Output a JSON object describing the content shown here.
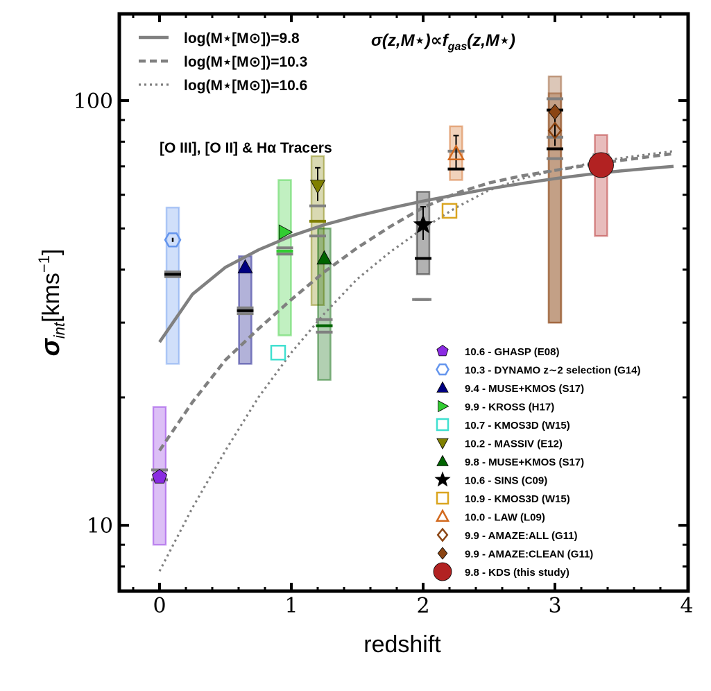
{
  "chart_data": {
    "type": "scatter",
    "title": "σ(z,M⋆)∝f",
    "title_sub": "gas",
    "title_tail": "(z,M⋆)",
    "xlabel": "redshift",
    "ylabel_main": "σ",
    "ylabel_sub": "int",
    "ylabel_units": "[kms",
    "ylabel_exp": "−1",
    "ylabel_close": "]",
    "xlim": [
      -0.3,
      4.0
    ],
    "ylim": [
      7.0,
      160.0
    ],
    "yscale": "log",
    "x_ticks": [
      0,
      1,
      2,
      3,
      4
    ],
    "x_tick_labels": [
      "0",
      "1",
      "2",
      "3",
      "4"
    ],
    "y_ticks": [
      10,
      100
    ],
    "y_tick_labels": [
      "10",
      "100"
    ],
    "tracer_note": "[O III], [O II] & Hα Tracers",
    "model_curves": [
      {
        "name": "log(M⋆[M⊙])=9.8",
        "style": "solid",
        "color": "#808080",
        "x": [
          0.0,
          0.25,
          0.5,
          0.75,
          1.0,
          1.25,
          1.5,
          1.75,
          2.0,
          2.25,
          2.5,
          2.75,
          3.0,
          3.25,
          3.5,
          3.75,
          3.9
        ],
        "y": [
          27.0,
          35.0,
          40.5,
          44.5,
          48.0,
          51.0,
          53.5,
          55.8,
          58.0,
          60.0,
          62.0,
          63.8,
          65.5,
          67.0,
          68.3,
          69.4,
          70.0
        ]
      },
      {
        "name": "log(M⋆[M⊙])=10.3",
        "style": "dashed",
        "color": "#808080",
        "x": [
          0.0,
          0.25,
          0.5,
          0.75,
          1.0,
          1.25,
          1.5,
          1.75,
          2.0,
          2.25,
          2.5,
          2.75,
          3.0,
          3.25,
          3.5,
          3.75,
          3.9
        ],
        "y": [
          15.0,
          19.5,
          24.5,
          29.0,
          34.0,
          39.5,
          45.0,
          50.5,
          56.0,
          60.5,
          64.0,
          66.5,
          68.5,
          70.5,
          72.3,
          74.0,
          75.0
        ]
      },
      {
        "name": "log(M⋆[M⊙])=10.6",
        "style": "dotted",
        "color": "#808080",
        "x": [
          0.0,
          0.25,
          0.5,
          0.75,
          1.0,
          1.25,
          1.5,
          1.75,
          2.0,
          2.25,
          2.5,
          2.75,
          3.0,
          3.25,
          3.5,
          3.75,
          3.9
        ],
        "y": [
          7.8,
          11.0,
          15.0,
          20.0,
          25.5,
          31.5,
          38.0,
          44.0,
          50.0,
          56.0,
          61.5,
          65.5,
          68.5,
          71.0,
          73.2,
          75.0,
          76.0
        ]
      }
    ],
    "series": [
      {
        "name": "10.6 - GHASP (E08)",
        "marker": "pentagon",
        "color": "#8a2be2",
        "filled": true,
        "x": 0.0,
        "y": 13.0,
        "box": [
          9.0,
          19.0
        ],
        "box_x": 0.0,
        "medians": [
          13.5,
          12.8
        ],
        "median_color": "#808080"
      },
      {
        "name": "10.3 - DYNAMO z∼2 selection (G14)",
        "marker": "hexagon",
        "color": "#6495ed",
        "filled": false,
        "x": 0.1,
        "y": 47.0,
        "box": [
          24.0,
          56.0
        ],
        "box_x": 0.1,
        "medians": [
          39.5,
          38.5
        ],
        "median_color": "#808080",
        "black_median": 39.0
      },
      {
        "name": "9.4 - MUSE+KMOS (S17)",
        "marker": "triangle-up",
        "color": "#000080",
        "filled": true,
        "x": 0.65,
        "y": 40.5,
        "box": [
          24.0,
          43.0
        ],
        "box_x": 0.65,
        "medians": [
          32.5,
          31.5
        ],
        "median_color": "#808080",
        "black_median": 32.0
      },
      {
        "name": "9.9 - KROSS (H17)",
        "marker": "triangle-right",
        "color": "#32cd32",
        "filled": true,
        "x": 0.95,
        "y": 49.0,
        "box": [
          28.0,
          65.0
        ],
        "box_x": 0.95,
        "medians": [
          45.0,
          43.5
        ],
        "median_color": "#808080",
        "green_median": 44.2
      },
      {
        "name": "10.7 - KMOS3D (W15)",
        "marker": "square",
        "color": "#40e0d0",
        "filled": false,
        "x": 0.9,
        "y": 25.5,
        "box": null
      },
      {
        "name": "10.2 - MASSIV (E12)",
        "marker": "triangle-down",
        "color": "#808000",
        "filled": true,
        "x": 1.2,
        "y": 63.0,
        "box": [
          33.0,
          74.0
        ],
        "box_x": 1.2,
        "medians": [
          56.5,
          48.0
        ],
        "median_color": "#808080",
        "olive_median": 52.0
      },
      {
        "name": "9.8 - MUSE+KMOS (S17)",
        "marker": "triangle-up",
        "color": "#006400",
        "filled": true,
        "x": 1.25,
        "y": 42.5,
        "box": [
          22.0,
          50.0
        ],
        "box_x": 1.25,
        "medians": [
          30.5,
          28.5
        ],
        "median_color": "#808080",
        "green_median": 29.5
      },
      {
        "name": "10.6 - SINS (C09)",
        "marker": "star",
        "color": "#000000",
        "filled": true,
        "x": 2.0,
        "y": 51.0,
        "box": [
          39.0,
          61.0
        ],
        "box_x": 2.0,
        "medians": [
          34.0
        ],
        "median_color": "#808080",
        "black_median": 42.5
      },
      {
        "name": "10.9 - KMOS3D (W15)",
        "marker": "square",
        "color": "#daa520",
        "filled": false,
        "x": 2.2,
        "y": 55.0,
        "box": null
      },
      {
        "name": "10.0 - LAW (L09)",
        "marker": "triangle-up",
        "color": "#d2691e",
        "filled": false,
        "x": 2.25,
        "y": 75.0,
        "box": [
          65.0,
          87.0
        ],
        "box_x": 2.25,
        "medians": [
          76.0
        ],
        "median_color": "#808080",
        "black_median": 69.0
      },
      {
        "name": "9.9 - AMAZE:ALL (G11)",
        "marker": "diamond",
        "color": "#8b4513",
        "filled": false,
        "x": 3.0,
        "y": 85.0,
        "box": [
          30.0,
          114.0
        ],
        "box_x": 3.0,
        "medians": [
          101.0,
          82.0,
          73.0
        ],
        "median_color": "#808080",
        "black_median": 77.0
      },
      {
        "name": "9.9 - AMAZE:CLEAN (G11)",
        "marker": "diamond",
        "color": "#8b4513",
        "filled": true,
        "x": 3.0,
        "y": 94.0,
        "box": [
          30.0,
          104.0
        ],
        "box_x": 3.0,
        "medians": [],
        "median_color": "#808080",
        "black_median": 95.0
      },
      {
        "name": "9.8 - KDS (this study)",
        "marker": "circle",
        "color": "#b22222",
        "filled": true,
        "x": 3.35,
        "y": 70.5,
        "box": [
          48.0,
          83.0
        ],
        "box_x": 3.35,
        "medians": [
          74.5
        ],
        "median_color": "#808080"
      }
    ]
  }
}
